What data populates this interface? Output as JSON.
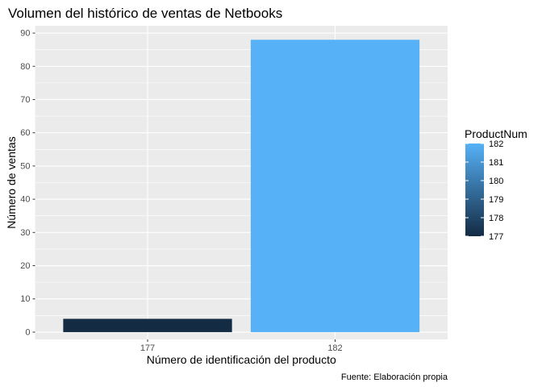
{
  "chart_data": {
    "type": "bar",
    "title": "Volumen del histórico de ventas de Netbooks",
    "xlabel": "Número de identificación del producto",
    "ylabel": "Número de ventas",
    "caption": "Fuente: Elaboración propia",
    "categories": [
      "177",
      "182"
    ],
    "values": [
      4,
      88
    ],
    "ylim": [
      -2.2,
      92.2
    ],
    "yticks": [
      0,
      10,
      20,
      30,
      40,
      50,
      60,
      70,
      80,
      90
    ],
    "grid": true,
    "legend": {
      "title": "ProductNum",
      "position": "right",
      "type": "colorbar",
      "range": [
        177,
        182
      ],
      "ticks": [
        177,
        178,
        179,
        180,
        181,
        182
      ],
      "low_color": "#132B43",
      "high_color": "#56B1F7"
    },
    "colors": {
      "panel_bg": "#EBEBEB",
      "grid": "#FFFFFF",
      "text": "#000000",
      "tick_text": "#4D4D4D"
    }
  }
}
